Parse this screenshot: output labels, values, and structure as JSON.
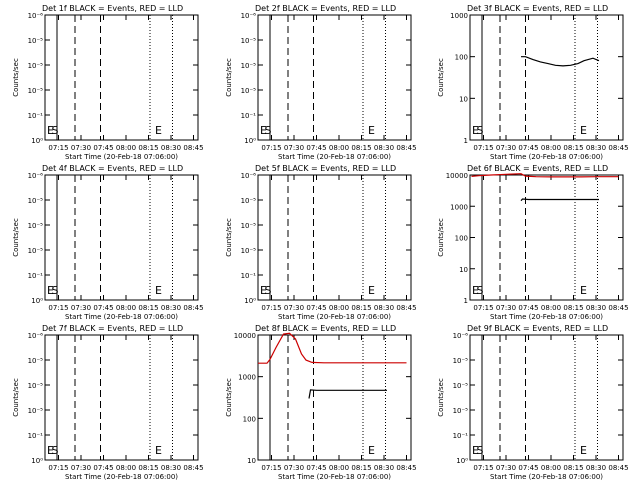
{
  "chart_data": [
    {
      "type": "line",
      "title": "Det 1f BLACK = Events, RED = LLD",
      "xlabel": "Start Time (20-Feb-18 07:06:00)",
      "ylabel": "Counts/sec",
      "yscale": "log",
      "ylim": [
        "10^0",
        "10^-6"
      ],
      "yticks": [
        "10^-6",
        "10^-5",
        "10^-5",
        "10^-5",
        "10^-1",
        "10^0"
      ],
      "xticks": [
        "07:15",
        "07:30",
        "07:45",
        "08:00",
        "08:15",
        "08:30",
        "08:45"
      ],
      "markers": [
        {
          "label": "E",
          "x": "07:08"
        },
        {
          "label": "S",
          "x": "07:11"
        },
        {
          "label": "E",
          "x": "08:20"
        }
      ],
      "series": []
    },
    {
      "type": "line",
      "title": "Det 2f BLACK = Events, RED = LLD",
      "xlabel": "Start Time (20-Feb-18 07:06:00)",
      "ylabel": "Counts/sec",
      "yscale": "log",
      "ylim": [
        "10^0",
        "10^-6"
      ],
      "yticks": [
        "10^-6",
        "10^-5",
        "10^-5",
        "10^-5",
        "10^-1",
        "10^0"
      ],
      "xticks": [
        "07:15",
        "07:30",
        "07:45",
        "08:00",
        "08:15",
        "08:30",
        "08:45"
      ],
      "markers": [
        {
          "label": "E",
          "x": "07:08"
        },
        {
          "label": "S",
          "x": "07:11"
        },
        {
          "label": "E",
          "x": "08:20"
        }
      ],
      "series": []
    },
    {
      "type": "line",
      "title": "Det 3f BLACK = Events, RED = LLD",
      "xlabel": "Start Time (20-Feb-18 07:06:00)",
      "ylabel": "Counts/sec",
      "yscale": "log",
      "ylim": [
        1,
        1000
      ],
      "yticks": [
        "1",
        "10",
        "100",
        "1000"
      ],
      "xticks": [
        "07:15",
        "07:30",
        "07:45",
        "08:00",
        "08:15",
        "08:30",
        "08:45"
      ],
      "markers": [
        {
          "label": "E",
          "x": "07:08"
        },
        {
          "label": "S",
          "x": "07:11"
        },
        {
          "label": "E",
          "x": "08:20"
        }
      ],
      "series": [
        {
          "color": "#000000",
          "x": [
            "07:40",
            "07:43",
            "07:48",
            "07:53",
            "07:58",
            "08:03",
            "08:08",
            "08:13",
            "08:18",
            "08:22",
            "08:28",
            "08:32"
          ],
          "y": [
            100,
            100,
            85,
            75,
            68,
            62,
            60,
            62,
            68,
            80,
            92,
            80
          ]
        }
      ]
    },
    {
      "type": "line",
      "title": "Det 4f BLACK = Events, RED = LLD",
      "xlabel": "Start Time (20-Feb-18 07:06:00)",
      "ylabel": "Counts/sec",
      "yscale": "log",
      "ylim": [
        "10^0",
        "10^-6"
      ],
      "yticks": [
        "10^-6",
        "10^-5",
        "10^-5",
        "10^-5",
        "10^-1",
        "10^0"
      ],
      "xticks": [
        "07:15",
        "07:30",
        "07:45",
        "08:00",
        "08:15",
        "08:30",
        "08:45"
      ],
      "markers": [
        {
          "label": "E",
          "x": "07:08"
        },
        {
          "label": "S",
          "x": "07:11"
        },
        {
          "label": "E",
          "x": "08:20"
        }
      ],
      "series": []
    },
    {
      "type": "line",
      "title": "Det 5f BLACK = Events, RED = LLD",
      "xlabel": "Start Time (20-Feb-18 07:06:00)",
      "ylabel": "Counts/sec",
      "yscale": "log",
      "ylim": [
        "10^0",
        "10^-6"
      ],
      "yticks": [
        "10^-6",
        "10^-5",
        "10^-5",
        "10^-5",
        "10^-1",
        "10^0"
      ],
      "xticks": [
        "07:15",
        "07:30",
        "07:45",
        "08:00",
        "08:15",
        "08:30",
        "08:45"
      ],
      "markers": [
        {
          "label": "E",
          "x": "07:08"
        },
        {
          "label": "S",
          "x": "07:11"
        },
        {
          "label": "E",
          "x": "08:20"
        }
      ],
      "series": []
    },
    {
      "type": "line",
      "title": "Det 6f BLACK = Events, RED = LLD",
      "xlabel": "Start Time (20-Feb-18 07:06:00)",
      "ylabel": "Counts/sec",
      "yscale": "log",
      "ylim": [
        1,
        10000
      ],
      "yticks": [
        "1",
        "10",
        "100",
        "1000",
        "10000"
      ],
      "xticks": [
        "07:15",
        "07:30",
        "07:45",
        "08:00",
        "08:15",
        "08:30",
        "08:45"
      ],
      "markers": [
        {
          "label": "E",
          "x": "07:08"
        },
        {
          "label": "S",
          "x": "07:11"
        },
        {
          "label": "E",
          "x": "08:20"
        }
      ],
      "series": [
        {
          "color": "#000000",
          "x": [
            "07:40",
            "07:41",
            "07:45",
            "07:55",
            "08:05",
            "08:15",
            "08:25",
            "08:32"
          ],
          "y": [
            1500,
            1700,
            1650,
            1650,
            1650,
            1650,
            1650,
            1650
          ]
        },
        {
          "color": "#cc0000",
          "x": [
            "07:07",
            "07:12",
            "07:20",
            "07:30",
            "07:40",
            "07:43",
            "07:50",
            "08:00",
            "08:10",
            "08:20",
            "08:30",
            "08:45"
          ],
          "y": [
            9000,
            9500,
            10000,
            10500,
            11000,
            9200,
            8800,
            8700,
            8700,
            8700,
            8800,
            8800
          ]
        }
      ]
    },
    {
      "type": "line",
      "title": "Det 7f BLACK = Events, RED = LLD",
      "xlabel": "Start Time (20-Feb-18 07:06:00)",
      "ylabel": "Counts/sec",
      "yscale": "log",
      "ylim": [
        "10^0",
        "10^-6"
      ],
      "yticks": [
        "10^-6",
        "10^-5",
        "10^-5",
        "10^-5",
        "10^-1",
        "10^0"
      ],
      "xticks": [
        "07:15",
        "07:30",
        "07:45",
        "08:00",
        "08:15",
        "08:30",
        "08:45"
      ],
      "markers": [
        {
          "label": "E",
          "x": "07:08"
        },
        {
          "label": "S",
          "x": "07:11"
        },
        {
          "label": "E",
          "x": "08:20"
        }
      ],
      "series": []
    },
    {
      "type": "line",
      "title": "Det 8f BLACK = Events, RED = LLD",
      "xlabel": "Start Time (20-Feb-18 07:06:00)",
      "ylabel": "Counts/sec",
      "yscale": "log",
      "ylim": [
        10,
        10000
      ],
      "yticks": [
        "10",
        "100",
        "1000",
        "10000"
      ],
      "xticks": [
        "07:15",
        "07:30",
        "07:45",
        "08:00",
        "08:15",
        "08:30",
        "08:45"
      ],
      "markers": [
        {
          "label": "E",
          "x": "08:20"
        }
      ],
      "series": [
        {
          "color": "#000000",
          "x": [
            "07:40",
            "07:41",
            "07:45",
            "07:55",
            "08:05",
            "08:15",
            "08:25",
            "08:32"
          ],
          "y": [
            300,
            480,
            470,
            470,
            470,
            470,
            470,
            470
          ]
        },
        {
          "color": "#cc0000",
          "x": [
            "07:06",
            "07:12",
            "07:14",
            "07:18",
            "07:23",
            "07:27",
            "07:31",
            "07:35",
            "07:38",
            "07:42",
            "07:50",
            "08:00",
            "08:10",
            "08:20",
            "08:30",
            "08:45"
          ],
          "y": [
            2100,
            2100,
            2600,
            5000,
            10500,
            11000,
            8000,
            3500,
            2500,
            2200,
            2150,
            2150,
            2150,
            2150,
            2150,
            2150
          ]
        }
      ]
    },
    {
      "type": "line",
      "title": "Det 9f BLACK = Events, RED = LLD",
      "xlabel": "Start Time (20-Feb-18 07:06:00)",
      "ylabel": "Counts/sec",
      "yscale": "log",
      "ylim": [
        "10^0",
        "10^-6"
      ],
      "yticks": [
        "10^-6",
        "10^-5",
        "10^-5",
        "10^-5",
        "10^-1",
        "10^0"
      ],
      "xticks": [
        "07:15",
        "07:30",
        "07:45",
        "08:00",
        "08:15",
        "08:30",
        "08:45"
      ],
      "markers": [
        {
          "label": "E",
          "x": "07:08"
        },
        {
          "label": "S",
          "x": "07:11"
        },
        {
          "label": "E",
          "x": "08:20"
        }
      ],
      "series": []
    }
  ]
}
